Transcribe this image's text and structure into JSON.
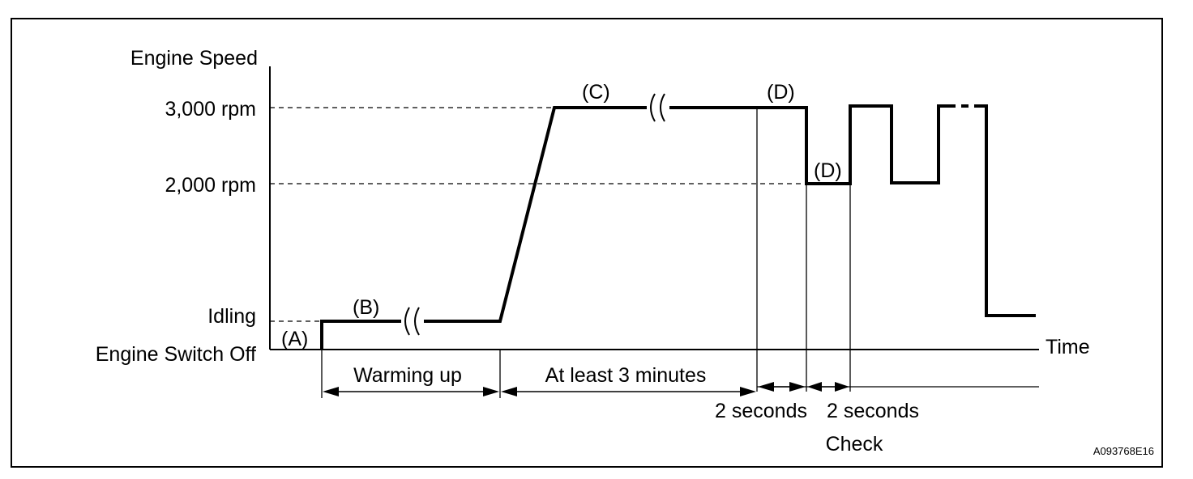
{
  "diagram": {
    "y_axis_title": "Engine Speed",
    "x_axis_title": "Time",
    "levels": {
      "rpm_3000": "3,000 rpm",
      "rpm_2000": "2,000 rpm",
      "idling": "Idling",
      "off": "Engine Switch Off"
    },
    "stages": {
      "a": "(A)",
      "b": "(B)",
      "c": "(C)",
      "d_high": "(D)",
      "d_low": "(D)"
    },
    "durations": {
      "warming_up": "Warming up",
      "at_least_3_minutes": "At least 3 minutes",
      "two_seconds_high": "2 seconds",
      "two_seconds_low": "2 seconds"
    },
    "check_label": "Check",
    "figure_code": "A093768E16"
  }
}
